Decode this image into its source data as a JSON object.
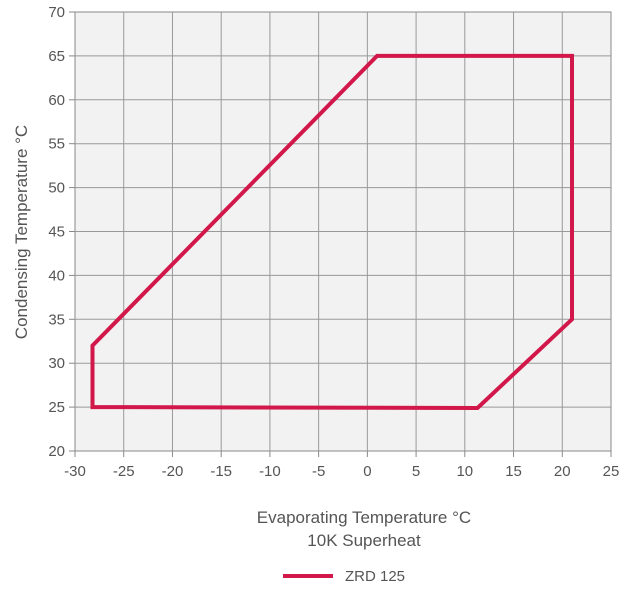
{
  "chart_data": {
    "type": "line",
    "title": "",
    "xlabel": "Evaporating Temperature °C",
    "xlabel_line2": "10K Superheat",
    "ylabel": "Condensing Temperature °C",
    "xlim": [
      -30,
      25
    ],
    "ylim": [
      20,
      70
    ],
    "xticks": [
      -30,
      -25,
      -20,
      -15,
      -10,
      -5,
      0,
      5,
      10,
      15,
      20,
      25
    ],
    "yticks": [
      20,
      25,
      30,
      35,
      40,
      45,
      50,
      55,
      60,
      65,
      70
    ],
    "grid": true,
    "legend_position": "bottom-center",
    "series": [
      {
        "name": "ZRD 125",
        "color": "#d2174a",
        "closed": true,
        "x": [
          -28.2,
          -28.2,
          1.0,
          21.0,
          21.0,
          11.3,
          -28.2
        ],
        "y": [
          25,
          32,
          65,
          65,
          35,
          24.9,
          25
        ]
      }
    ]
  }
}
